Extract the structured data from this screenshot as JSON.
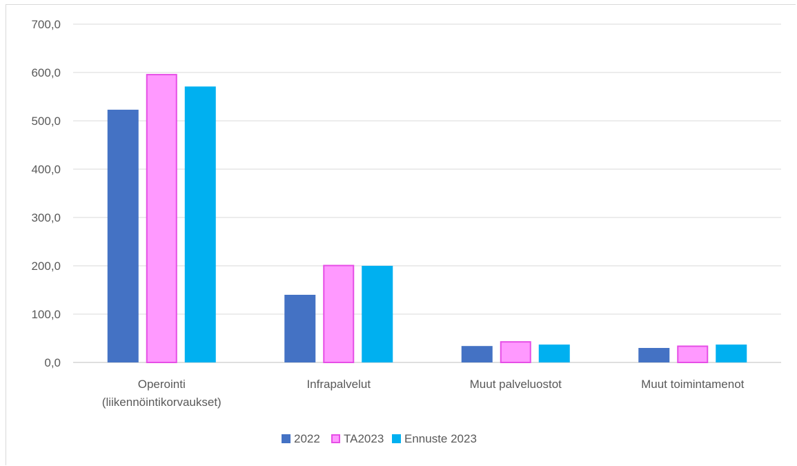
{
  "chart_data": {
    "type": "bar",
    "categories": [
      [
        "Operointi",
        "(liikennöintikorvaukset)"
      ],
      [
        "Infrapalvelut"
      ],
      [
        "Muut palveluostot"
      ],
      [
        "Muut toimintamenot"
      ]
    ],
    "series": [
      {
        "name": "2022",
        "values": [
          523,
          140,
          34,
          30
        ],
        "color": "#4472c4",
        "border": "#4472c4"
      },
      {
        "name": "TA2023",
        "values": [
          597,
          202,
          44,
          35
        ],
        "color": "#ff99ff",
        "border": "#e64ee6"
      },
      {
        "name": "Ennuste 2023",
        "values": [
          571,
          200,
          37,
          37
        ],
        "color": "#00b0f0",
        "border": "#00b0f0"
      }
    ],
    "yticks": [
      "0,0",
      "100,0",
      "200,0",
      "300,0",
      "400,0",
      "500,0",
      "600,0",
      "700,0"
    ],
    "ylim": [
      0,
      700
    ],
    "grid": true,
    "legend_position": "bottom"
  }
}
